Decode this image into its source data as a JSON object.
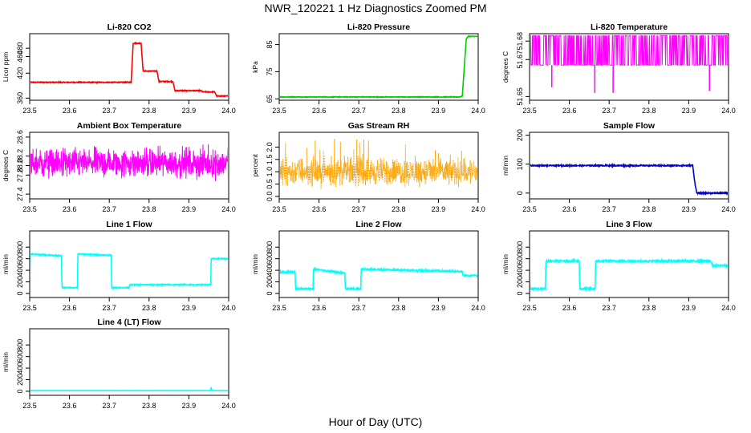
{
  "figure": {
    "title": "NWR_120221  1 Hz Diagnostics Zoomed PM",
    "xlabel": "Hour of Day (UTC)"
  },
  "chart_data": [
    {
      "type": "line",
      "title": "Li-820 CO2",
      "ylabel": "Licor ppm",
      "color": "#ff0000",
      "xlim": [
        23.5,
        24.0
      ],
      "ylim": [
        355,
        515
      ],
      "xticks": [
        "23.5",
        "23.6",
        "23.7",
        "23.8",
        "23.9",
        "24.0"
      ],
      "yticks": [
        {
          "v": 360,
          "t": "360"
        },
        {
          "v": 420,
          "t": "420"
        },
        {
          "v": 460,
          "t": "460"
        },
        {
          "v": 480,
          "t": "480"
        }
      ],
      "series": [
        {
          "x": [
            23.5,
            23.755,
            23.76,
            23.78,
            23.785,
            23.82,
            23.825,
            23.86,
            23.865,
            23.93,
            23.935,
            23.965,
            23.97,
            24.0
          ],
          "y": [
            398,
            398,
            492,
            492,
            425,
            425,
            400,
            400,
            378,
            378,
            375,
            375,
            365,
            365
          ]
        }
      ],
      "noise": 1
    },
    {
      "type": "line",
      "title": "Li-820 Pressure",
      "ylabel": "kPa",
      "color": "#00cc00",
      "xlim": [
        23.5,
        24.0
      ],
      "ylim": [
        64.5,
        89
      ],
      "xticks": [
        "23.5",
        "23.6",
        "23.7",
        "23.8",
        "23.9",
        "24.0"
      ],
      "yticks": [
        {
          "v": 65,
          "t": "65"
        },
        {
          "v": 75,
          "t": "75"
        },
        {
          "v": 85,
          "t": "85"
        }
      ],
      "series": [
        {
          "x": [
            23.5,
            23.955,
            23.96,
            23.97,
            23.975,
            24.0
          ],
          "y": [
            65.7,
            65.7,
            66,
            87,
            88,
            88
          ]
        }
      ],
      "noise": 0.1
    },
    {
      "type": "line",
      "title": "Li-820 Temperature",
      "ylabel": "degrees C",
      "color": "#ff00ff",
      "xlim": [
        23.5,
        24.0
      ],
      "ylim": [
        51.648,
        51.684
      ],
      "xticks": [
        "23.5",
        "23.6",
        "23.7",
        "23.8",
        "23.9",
        "24.0"
      ],
      "yticks": [
        {
          "v": 51.65,
          "t": "51.65"
        },
        {
          "v": 51.67,
          "t": "51.67"
        },
        {
          "v": 51.68,
          "t": "51.68"
        }
      ],
      "pattern": "binary",
      "levels": [
        51.667,
        51.683
      ],
      "spikes": [
        {
          "x": 23.556,
          "y": 51.655
        },
        {
          "x": 23.664,
          "y": 51.652
        },
        {
          "x": 23.71,
          "y": 51.652
        },
        {
          "x": 23.952,
          "y": 51.653
        }
      ]
    },
    {
      "type": "line",
      "title": "Ambient Box Temperature",
      "ylabel": "degrees C",
      "color": "#ff00ff",
      "xlim": [
        23.5,
        24.0
      ],
      "ylim": [
        27.3,
        28.7
      ],
      "xticks": [
        "23.5",
        "23.6",
        "23.7",
        "23.8",
        "23.9",
        "24.0"
      ],
      "yticks": [
        {
          "v": 27.4,
          "t": "27.4"
        },
        {
          "v": 27.8,
          "t": "27.8"
        },
        {
          "v": 28.0,
          "t": "28.0"
        },
        {
          "v": 28.2,
          "t": "28.2"
        },
        {
          "v": 28.6,
          "t": "28.6"
        }
      ],
      "pattern": "noise",
      "center": 28.05,
      "amp": 0.28
    },
    {
      "type": "line",
      "title": "Gas Stream RH",
      "ylabel": "percent",
      "color": "#ffa500",
      "xlim": [
        23.5,
        24.0
      ],
      "ylim": [
        -0.1,
        2.6
      ],
      "xticks": [
        "23.5",
        "23.6",
        "23.7",
        "23.8",
        "23.9",
        "24.0"
      ],
      "yticks": [
        {
          "v": 0,
          "t": "0.0"
        },
        {
          "v": 0.5,
          "t": "0.5"
        },
        {
          "v": 1.0,
          "t": "1.0"
        },
        {
          "v": 1.5,
          "t": "1.5"
        },
        {
          "v": 2.0,
          "t": "2.0"
        }
      ],
      "pattern": "dotted-noise",
      "center": 1.0,
      "amp": 0.5
    },
    {
      "type": "line",
      "title": "Sample Flow",
      "ylabel": "ml/min",
      "color": "#0000cc",
      "xlim": [
        23.5,
        24.0
      ],
      "ylim": [
        -20,
        210
      ],
      "xticks": [
        "23.5",
        "23.6",
        "23.7",
        "23.8",
        "23.9",
        "24.0"
      ],
      "yticks": [
        {
          "v": 0,
          "t": "0"
        },
        {
          "v": 100,
          "t": "100"
        },
        {
          "v": 200,
          "t": "200"
        }
      ],
      "series": [
        {
          "x": [
            23.5,
            23.91,
            23.915,
            23.92,
            24.0
          ],
          "y": [
            95,
            95,
            40,
            0,
            0
          ]
        }
      ],
      "noise": 2
    },
    {
      "type": "line",
      "title": "Line 1 Flow",
      "ylabel": "ml/min",
      "color": "#00ffff",
      "xlim": [
        23.5,
        24.0
      ],
      "ylim": [
        -70,
        1080
      ],
      "xticks": [
        "23.5",
        "23.6",
        "23.7",
        "23.8",
        "23.9",
        "24.0"
      ],
      "yticks": [
        {
          "v": 0,
          "t": "0"
        },
        {
          "v": 200,
          "t": "200"
        },
        {
          "v": 400,
          "t": "400"
        },
        {
          "v": 600,
          "t": "600"
        },
        {
          "v": 800,
          "t": "800"
        }
      ],
      "series": [
        {
          "x": [
            23.5,
            23.501,
            23.58,
            23.581,
            23.62,
            23.621,
            23.705,
            23.706,
            23.75,
            23.751,
            23.955,
            23.956,
            24.0
          ],
          "y": [
            100,
            680,
            650,
            100,
            100,
            680,
            660,
            100,
            100,
            150,
            150,
            600,
            600
          ]
        }
      ],
      "noise": 8
    },
    {
      "type": "line",
      "title": "Line 2 Flow",
      "ylabel": "ml/min",
      "color": "#00ffff",
      "xlim": [
        23.5,
        24.0
      ],
      "ylim": [
        -70,
        1080
      ],
      "xticks": [
        "23.5",
        "23.6",
        "23.7",
        "23.8",
        "23.9",
        "24.0"
      ],
      "yticks": [
        {
          "v": 0,
          "t": "0"
        },
        {
          "v": 200,
          "t": "200"
        },
        {
          "v": 400,
          "t": "400"
        },
        {
          "v": 600,
          "t": "600"
        },
        {
          "v": 800,
          "t": "800"
        }
      ],
      "series": [
        {
          "x": [
            23.5,
            23.54,
            23.541,
            23.585,
            23.586,
            23.665,
            23.666,
            23.705,
            23.706,
            23.96,
            23.961,
            24.0
          ],
          "y": [
            370,
            370,
            80,
            80,
            420,
            350,
            80,
            80,
            420,
            380,
            310,
            310
          ]
        }
      ],
      "noise": 12
    },
    {
      "type": "line",
      "title": "Line 3 Flow",
      "ylabel": "ml/min",
      "color": "#00ffff",
      "xlim": [
        23.5,
        24.0
      ],
      "ylim": [
        -70,
        1080
      ],
      "xticks": [
        "23.5",
        "23.6",
        "23.7",
        "23.8",
        "23.9",
        "24.0"
      ],
      "yticks": [
        {
          "v": 0,
          "t": "0"
        },
        {
          "v": 200,
          "t": "200"
        },
        {
          "v": 400,
          "t": "400"
        },
        {
          "v": 600,
          "t": "600"
        },
        {
          "v": 800,
          "t": "800"
        }
      ],
      "series": [
        {
          "x": [
            23.5,
            23.501,
            23.54,
            23.541,
            23.625,
            23.626,
            23.665,
            23.666,
            23.955,
            23.96,
            24.0
          ],
          "y": [
            580,
            80,
            80,
            560,
            560,
            80,
            80,
            560,
            560,
            480,
            480
          ]
        }
      ],
      "noise": 14
    },
    {
      "type": "line",
      "title": "Line 4 (LT) Flow",
      "ylabel": "ml/min",
      "color": "#00ffff",
      "xlim": [
        23.5,
        24.0
      ],
      "ylim": [
        -70,
        1080
      ],
      "xticks": [
        "23.5",
        "23.6",
        "23.7",
        "23.8",
        "23.9",
        "24.0"
      ],
      "yticks": [
        {
          "v": 0,
          "t": "0"
        },
        {
          "v": 200,
          "t": "200"
        },
        {
          "v": 400,
          "t": "400"
        },
        {
          "v": 600,
          "t": "600"
        },
        {
          "v": 800,
          "t": "800"
        }
      ],
      "series": [
        {
          "x": [
            23.5,
            23.955,
            23.956,
            23.957,
            23.96,
            24.0
          ],
          "y": [
            10,
            10,
            80,
            25,
            10,
            10
          ]
        }
      ],
      "noise": 1
    }
  ]
}
